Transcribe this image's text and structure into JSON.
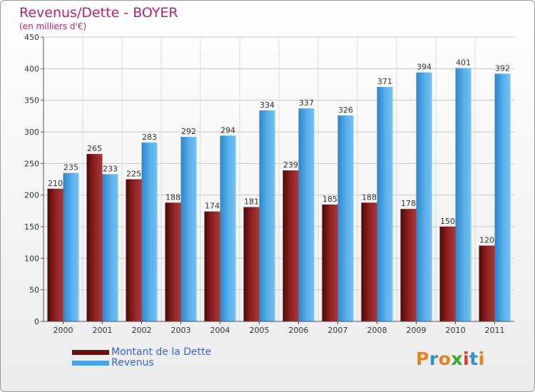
{
  "header": {
    "title": "Revenus/Dette - BOYER",
    "subtitle": "(en milliers d'€)"
  },
  "logo": {
    "text": "Proxiti",
    "colors": [
      "#e8821e",
      "#2f8fcf",
      "#e8821e",
      "#3fa535",
      "#e83a2c",
      "#2f8fcf",
      "#e8821e"
    ]
  },
  "chart_data": {
    "type": "bar",
    "title": "Revenus/Dette - BOYER",
    "subtitle": "(en milliers d'€)",
    "categories": [
      "2000",
      "2001",
      "2002",
      "2003",
      "2004",
      "2005",
      "2006",
      "2007",
      "2008",
      "2009",
      "2010",
      "2011"
    ],
    "series": [
      {
        "name": "Montant de la Dette",
        "color": "#7a1414",
        "values": [
          210,
          265,
          225,
          188,
          174,
          181,
          239,
          185,
          188,
          178,
          150,
          120
        ]
      },
      {
        "name": "Revenus",
        "color": "#4aa3e6",
        "values": [
          235,
          233,
          283,
          292,
          294,
          334,
          337,
          326,
          371,
          394,
          401,
          392
        ]
      }
    ],
    "ylim": [
      0,
      450
    ],
    "yticks": [
      0,
      50,
      100,
      150,
      200,
      250,
      300,
      350,
      400,
      450
    ],
    "grid": true,
    "legend": "bottom-left",
    "xlabel": "",
    "ylabel": ""
  }
}
